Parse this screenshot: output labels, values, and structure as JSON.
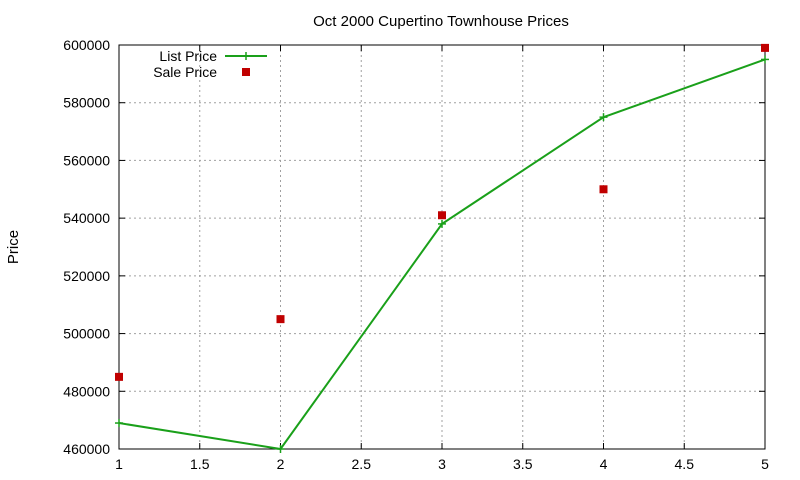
{
  "chart_data": {
    "type": "line",
    "title": "Oct 2000 Cupertino Townhouse Prices",
    "xlabel": "",
    "ylabel": "Price",
    "xlim": [
      1,
      5
    ],
    "ylim": [
      460000,
      600000
    ],
    "x_ticks": [
      1,
      1.5,
      2,
      2.5,
      3,
      3.5,
      4,
      4.5,
      5
    ],
    "x_tick_labels": [
      "1",
      "1.5",
      "2",
      "2.5",
      "3",
      "3.5",
      "4",
      "4.5",
      "5"
    ],
    "y_ticks": [
      460000,
      480000,
      500000,
      520000,
      540000,
      560000,
      580000,
      600000
    ],
    "y_tick_labels": [
      "460000",
      "480000",
      "500000",
      "520000",
      "540000",
      "560000",
      "580000",
      "600000"
    ],
    "grid": true,
    "legend_position": "top-left",
    "series": [
      {
        "name": "List Price",
        "style": "linespoints",
        "color": "#1aa01a",
        "x": [
          1,
          2,
          3,
          4,
          5
        ],
        "values": [
          469000,
          460000,
          538000,
          575000,
          595000
        ]
      },
      {
        "name": "Sale Price",
        "style": "points",
        "color": "#c00000",
        "x": [
          1,
          2,
          3,
          4,
          5
        ],
        "values": [
          485000,
          505000,
          541000,
          550000,
          599000
        ]
      }
    ]
  }
}
